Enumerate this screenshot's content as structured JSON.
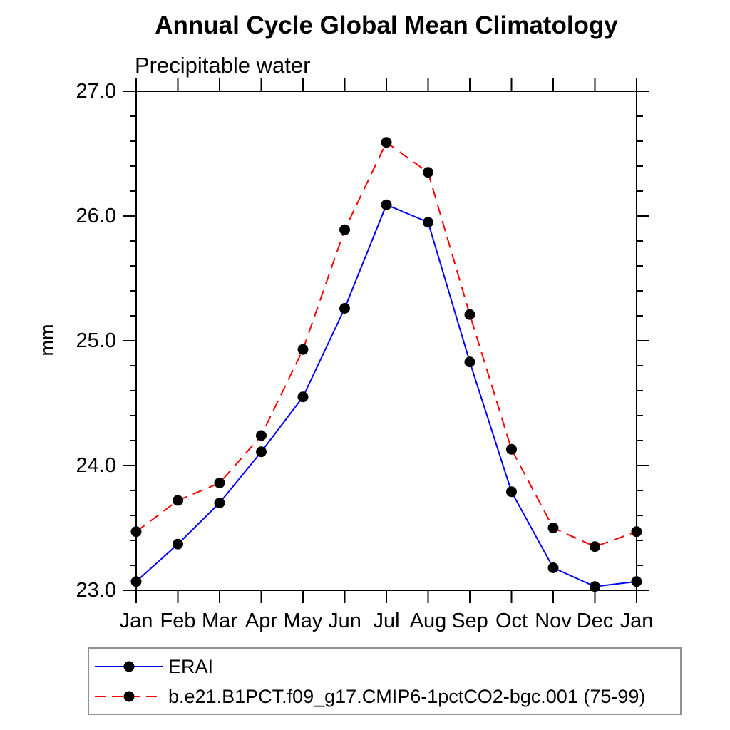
{
  "page": {
    "title": "Annual Cycle Global Mean Climatology"
  },
  "chart_data": {
    "type": "line",
    "title": "Annual Cycle Global Mean Climatology",
    "subtitle": "Precipitable water",
    "xlabel": "",
    "ylabel": "mm",
    "categories": [
      "Jan",
      "Feb",
      "Mar",
      "Apr",
      "May",
      "Jun",
      "Jul",
      "Aug",
      "Sep",
      "Oct",
      "Nov",
      "Dec",
      "Jan"
    ],
    "ylim": [
      23.0,
      27.0
    ],
    "ytick_interval": 1.0,
    "yminor_interval": 0.2,
    "ytick_labels": [
      "23.0",
      "24.0",
      "25.0",
      "26.0",
      "27.0"
    ],
    "grid": false,
    "legend_position": "bottom-left-box",
    "frame_color": "#000000",
    "legend_border_color": "#909090",
    "marker": {
      "shape": "circle",
      "color": "#000000",
      "radius": 7.5
    },
    "series": [
      {
        "name": "ERAI",
        "color": "#0000ff",
        "line_style": "solid",
        "values": [
          23.07,
          23.37,
          23.7,
          24.11,
          24.55,
          25.26,
          26.09,
          25.95,
          24.83,
          23.79,
          23.18,
          23.03,
          23.07
        ]
      },
      {
        "name": "b.e21.B1PCT.f09_g17.CMIP6-1pctCO2-bgc.001 (75-99)",
        "color": "#ff0000",
        "line_style": "dashed",
        "values": [
          23.47,
          23.72,
          23.86,
          24.24,
          24.93,
          25.89,
          26.59,
          26.35,
          25.21,
          24.13,
          23.5,
          23.35,
          23.47
        ]
      }
    ]
  }
}
